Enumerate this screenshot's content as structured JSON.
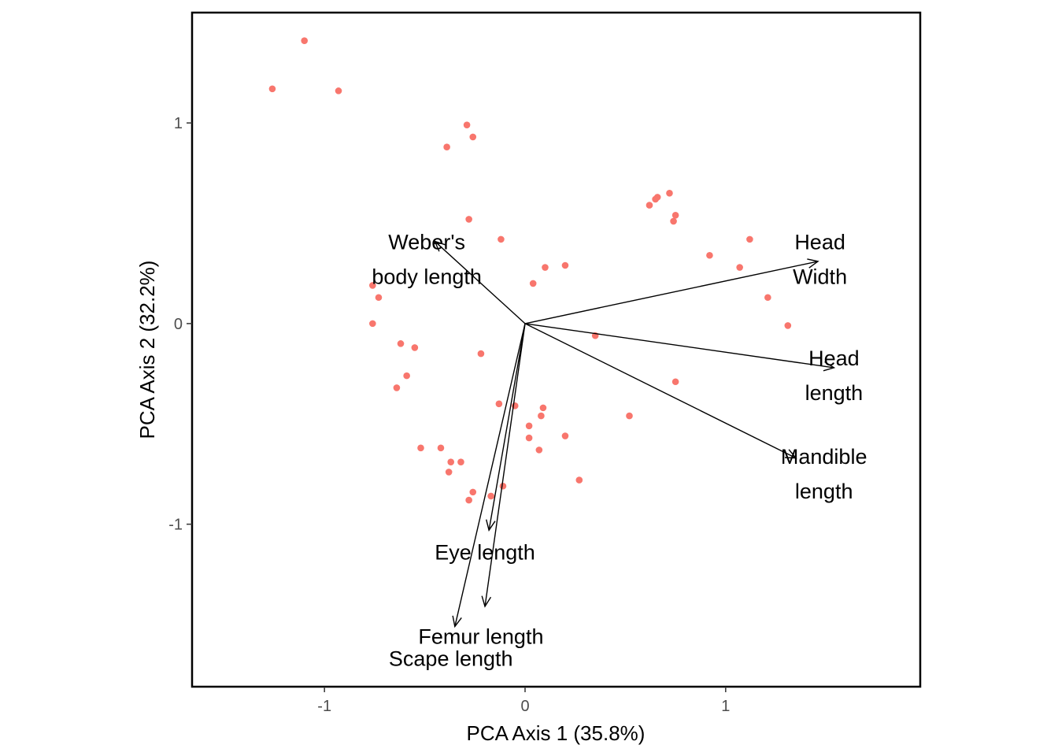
{
  "chart_data": {
    "type": "scatter",
    "title": "",
    "xlabel": "PCA Axis 1 (35.8%)",
    "ylabel": "PCA Axis 2 (32.2%)",
    "xlim": [
      -1.66,
      1.97
    ],
    "ylim": [
      -1.81,
      1.55
    ],
    "xticks": [
      {
        "value": -1,
        "label": "-1"
      },
      {
        "value": 0,
        "label": "0"
      },
      {
        "value": 1,
        "label": "1"
      }
    ],
    "yticks": [
      {
        "value": -1,
        "label": "-1"
      },
      {
        "value": 0,
        "label": "0"
      },
      {
        "value": 1,
        "label": "1"
      }
    ],
    "grid": false,
    "legend": "none",
    "point_color": "#f8766d",
    "series": [
      {
        "points": [
          [
            -1.1,
            1.41
          ],
          [
            -1.26,
            1.17
          ],
          [
            -0.93,
            1.16
          ],
          [
            -0.29,
            0.99
          ],
          [
            -0.26,
            0.93
          ],
          [
            -0.39,
            0.88
          ],
          [
            -0.28,
            0.52
          ],
          [
            -0.12,
            0.42
          ],
          [
            0.1,
            0.28
          ],
          [
            0.2,
            0.29
          ],
          [
            0.04,
            0.2
          ],
          [
            0.72,
            0.65
          ],
          [
            0.66,
            0.63
          ],
          [
            0.65,
            0.62
          ],
          [
            0.62,
            0.59
          ],
          [
            0.75,
            0.54
          ],
          [
            0.74,
            0.51
          ],
          [
            1.12,
            0.42
          ],
          [
            0.92,
            0.34
          ],
          [
            1.07,
            0.28
          ],
          [
            1.21,
            0.13
          ],
          [
            1.31,
            -0.01
          ],
          [
            -0.76,
            0.19
          ],
          [
            -0.73,
            0.13
          ],
          [
            -0.76,
            0.0
          ],
          [
            -0.62,
            -0.1
          ],
          [
            -0.55,
            -0.12
          ],
          [
            -0.22,
            -0.15
          ],
          [
            -0.59,
            -0.26
          ],
          [
            -0.64,
            -0.32
          ],
          [
            0.35,
            -0.06
          ],
          [
            0.75,
            -0.29
          ],
          [
            -0.13,
            -0.4
          ],
          [
            -0.05,
            -0.41
          ],
          [
            0.09,
            -0.42
          ],
          [
            0.08,
            -0.46
          ],
          [
            0.52,
            -0.46
          ],
          [
            0.02,
            -0.51
          ],
          [
            0.02,
            -0.57
          ],
          [
            0.2,
            -0.56
          ],
          [
            0.07,
            -0.63
          ],
          [
            -0.52,
            -0.62
          ],
          [
            -0.42,
            -0.62
          ],
          [
            -0.37,
            -0.69
          ],
          [
            -0.32,
            -0.69
          ],
          [
            -0.38,
            -0.74
          ],
          [
            0.27,
            -0.78
          ],
          [
            -0.11,
            -0.81
          ],
          [
            -0.26,
            -0.84
          ],
          [
            -0.17,
            -0.86
          ],
          [
            -0.28,
            -0.88
          ]
        ]
      }
    ],
    "vectors": [
      {
        "label_lines": [
          "Head",
          "Width"
        ],
        "x": 1.46,
        "y": 0.31,
        "label_x": 1.47,
        "label_y": 0.32
      },
      {
        "label_lines": [
          "Head",
          "length"
        ],
        "x": 1.54,
        "y": -0.22,
        "label_x": 1.54,
        "label_y": -0.26
      },
      {
        "label_lines": [
          "Mandible",
          "length"
        ],
        "x": 1.35,
        "y": -0.67,
        "label_x": 1.49,
        "label_y": -0.75
      },
      {
        "label_lines": [
          "Weber's",
          "body length"
        ],
        "x": -0.45,
        "y": 0.41,
        "label_x": -0.49,
        "label_y": 0.32
      },
      {
        "label_lines": [
          "Eye length"
        ],
        "x": -0.18,
        "y": -1.03,
        "label_x": -0.2,
        "label_y": -1.14
      },
      {
        "label_lines": [
          "Femur length"
        ],
        "x": -0.35,
        "y": -1.51,
        "label_x": -0.22,
        "label_y": -1.56
      },
      {
        "label_lines": [
          "Scape length"
        ],
        "x": -0.2,
        "y": -1.41,
        "label_x": -0.37,
        "label_y": -1.67
      }
    ]
  }
}
